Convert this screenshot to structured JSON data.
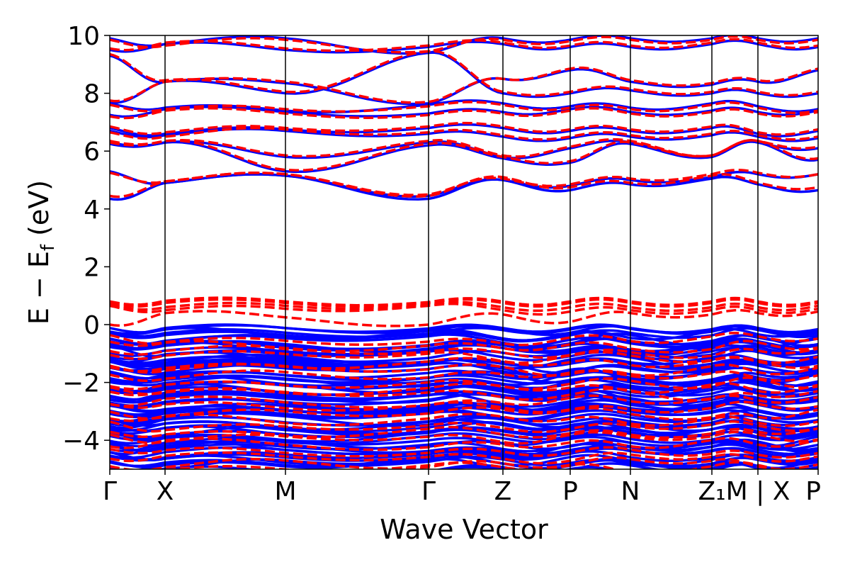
{
  "chart_data": {
    "type": "line",
    "title": "",
    "xlabel": "Wave Vector",
    "ylabel": "E − E_f (eV)",
    "ylabel_parts": {
      "main": "E − E",
      "sub": "f",
      "unit": " (eV)"
    },
    "ylim": [
      -5,
      10
    ],
    "yticks": [
      -4,
      -2,
      0,
      2,
      4,
      6,
      8,
      10
    ],
    "ytick_labels": [
      "−4",
      "−2",
      "0",
      "2",
      "4",
      "6",
      "8",
      "10"
    ],
    "xlim": [
      0,
      10
    ],
    "kpoints": [
      {
        "label": "Γ",
        "x": 0.0
      },
      {
        "label": "X",
        "x": 0.78
      },
      {
        "label": "M",
        "x": 2.48
      },
      {
        "label": "Γ",
        "x": 4.5
      },
      {
        "label": "Z",
        "x": 5.55
      },
      {
        "label": "P",
        "x": 6.5
      },
      {
        "label": "N",
        "x": 7.35
      },
      {
        "label": "Z₁",
        "x": 8.5
      },
      {
        "label": "M | X",
        "x": 9.15
      },
      {
        "label": "P",
        "x": 10.0
      }
    ],
    "colors": {
      "solid": "#0000ff",
      "dashed": "#ff0000",
      "divider": "#000000"
    },
    "series": [
      {
        "name": "solid-bands",
        "style": "solid",
        "color": "#0000ff",
        "conduction_anchors": [
          [
            4.35,
            4.9,
            5.15,
            4.35,
            5.0,
            4.65,
            4.85,
            5.05,
            4.85,
            4.65
          ],
          [
            5.3,
            4.9,
            5.15,
            4.45,
            5.0,
            4.8,
            5.0,
            5.1,
            5.2,
            5.2
          ],
          [
            6.25,
            6.3,
            5.3,
            6.2,
            5.75,
            5.6,
            6.25,
            5.8,
            6.3,
            5.7
          ],
          [
            6.3,
            6.3,
            5.8,
            6.3,
            5.8,
            6.1,
            6.3,
            5.8,
            6.3,
            6.1
          ],
          [
            6.7,
            6.55,
            6.7,
            6.6,
            6.5,
            6.45,
            6.5,
            6.55,
            6.5,
            6.45
          ],
          [
            6.8,
            6.6,
            6.75,
            6.8,
            6.8,
            6.7,
            6.7,
            6.8,
            6.6,
            6.7
          ],
          [
            7.25,
            7.45,
            7.35,
            7.3,
            7.35,
            7.45,
            7.35,
            7.4,
            7.35,
            7.4
          ],
          [
            7.65,
            7.5,
            7.4,
            7.6,
            7.65,
            7.55,
            7.5,
            7.65,
            7.55,
            7.45
          ],
          [
            7.7,
            8.4,
            8.35,
            7.65,
            8.5,
            8.8,
            8.4,
            8.3,
            8.4,
            8.8
          ],
          [
            9.3,
            8.4,
            8.0,
            9.4,
            8.0,
            8.0,
            8.1,
            8.0,
            8.0,
            8.0
          ],
          [
            9.5,
            9.7,
            9.5,
            9.6,
            9.7,
            9.6,
            9.6,
            9.7,
            9.7,
            9.6
          ],
          [
            9.9,
            9.7,
            9.9,
            9.4,
            9.9,
            9.85,
            9.9,
            9.9,
            9.9,
            9.9
          ]
        ],
        "valence_band_range": [
          -5.0,
          -0.1
        ]
      },
      {
        "name": "dashed-bands",
        "style": "dashed",
        "color": "#ff0000",
        "conduction_anchors": [
          [
            4.45,
            4.95,
            5.2,
            4.45,
            5.1,
            4.75,
            4.9,
            5.15,
            4.9,
            4.75
          ],
          [
            5.25,
            4.95,
            5.2,
            4.5,
            5.05,
            4.85,
            5.05,
            5.2,
            5.25,
            5.2
          ],
          [
            6.3,
            6.35,
            5.35,
            6.25,
            5.8,
            5.65,
            6.3,
            5.85,
            6.35,
            5.75
          ],
          [
            6.35,
            6.35,
            5.85,
            6.35,
            5.85,
            6.15,
            6.35,
            5.85,
            6.35,
            6.15
          ],
          [
            6.65,
            6.5,
            6.75,
            6.65,
            6.55,
            6.5,
            6.55,
            6.6,
            6.55,
            6.5
          ],
          [
            6.85,
            6.65,
            6.8,
            6.85,
            6.85,
            6.75,
            6.75,
            6.85,
            6.65,
            6.75
          ],
          [
            7.2,
            7.4,
            7.3,
            7.25,
            7.3,
            7.4,
            7.3,
            7.35,
            7.3,
            7.35
          ],
          [
            7.6,
            7.45,
            7.45,
            7.55,
            7.6,
            7.5,
            7.45,
            7.6,
            7.5,
            7.4
          ],
          [
            7.75,
            8.4,
            8.4,
            7.7,
            8.5,
            8.85,
            8.45,
            8.35,
            8.45,
            8.85
          ],
          [
            9.35,
            8.45,
            8.05,
            9.45,
            8.05,
            8.05,
            8.15,
            8.05,
            8.05,
            8.05
          ],
          [
            9.55,
            9.75,
            9.55,
            9.65,
            9.75,
            9.65,
            9.65,
            9.75,
            9.75,
            9.65
          ],
          [
            9.85,
            9.65,
            9.85,
            9.45,
            9.85,
            9.8,
            9.85,
            9.85,
            9.85,
            9.85
          ]
        ],
        "top_valence_anchors": [
          [
            0.0,
            0.4,
            0.25,
            0.0,
            0.35,
            0.1,
            0.4,
            0.35,
            0.4,
            0.45
          ],
          [
            0.65,
            0.5,
            0.55,
            0.65,
            0.5,
            0.45,
            0.5,
            0.5,
            0.5,
            0.55
          ],
          [
            0.7,
            0.6,
            0.65,
            0.7,
            0.6,
            0.6,
            0.6,
            0.6,
            0.6,
            0.65
          ],
          [
            0.75,
            0.75,
            0.75,
            0.75,
            0.75,
            0.75,
            0.75,
            0.75,
            0.75,
            0.75
          ],
          [
            0.8,
            0.82,
            0.8,
            0.78,
            0.8,
            0.8,
            0.8,
            0.8,
            0.8,
            0.8
          ]
        ],
        "valence_band_range": [
          -5.0,
          -0.5
        ]
      }
    ]
  }
}
